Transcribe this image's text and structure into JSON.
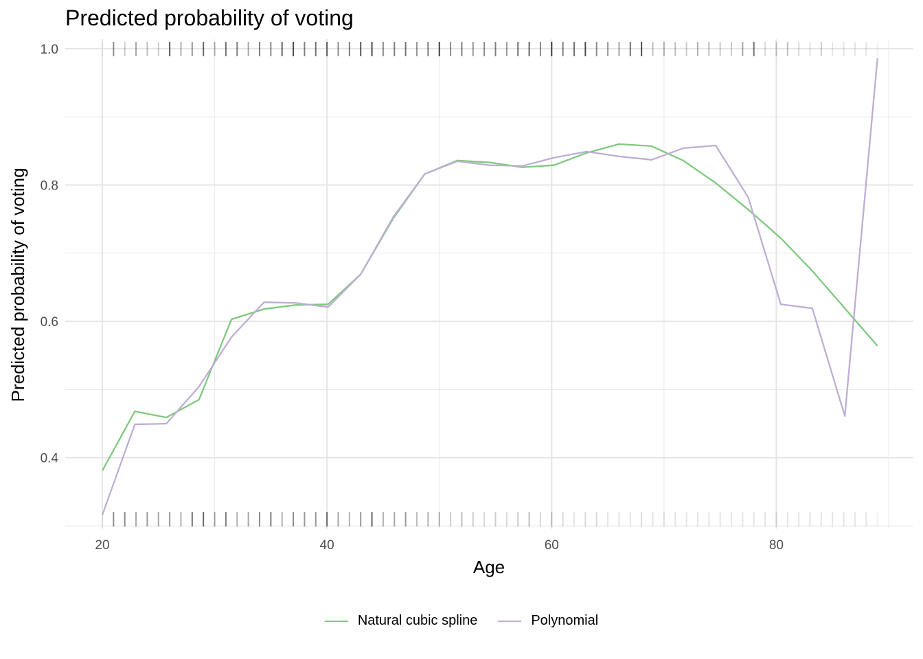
{
  "chart_data": {
    "type": "line",
    "title": "Predicted probability of voting",
    "xlabel": "Age",
    "ylabel": "Predicted probability of voting",
    "xlim": [
      16.7,
      92.2
    ],
    "ylim": [
      0.296,
      1.014
    ],
    "x_ticks": [
      20,
      40,
      60,
      80
    ],
    "y_ticks": [
      0.4,
      0.6,
      0.8,
      1.0
    ],
    "x_tick_labels": [
      "20",
      "40",
      "60",
      "80"
    ],
    "y_tick_labels": [
      "0.4",
      "0.6",
      "0.8",
      "1.0"
    ],
    "grid": true,
    "legend_position": "bottom",
    "x": [
      20,
      22.9,
      25.7,
      28.6,
      31.5,
      34.4,
      37.2,
      40.1,
      43,
      45.9,
      48.7,
      51.6,
      54.5,
      57.4,
      60.2,
      63.1,
      66,
      68.9,
      71.7,
      74.6,
      77.5,
      80.4,
      83.2,
      86.1,
      89
    ],
    "series": [
      {
        "name": "Natural cubic spline",
        "color": "#7fc97f",
        "values": [
          0.381,
          0.468,
          0.459,
          0.485,
          0.603,
          0.618,
          0.624,
          0.625,
          0.669,
          0.751,
          0.816,
          0.836,
          0.833,
          0.826,
          0.829,
          0.847,
          0.86,
          0.857,
          0.836,
          0.803,
          0.764,
          0.722,
          0.674,
          0.619,
          0.564
        ]
      },
      {
        "name": "Polynomial",
        "color": "#beaed4",
        "values": [
          0.316,
          0.449,
          0.45,
          0.504,
          0.577,
          0.628,
          0.627,
          0.621,
          0.669,
          0.753,
          0.816,
          0.835,
          0.829,
          0.828,
          0.84,
          0.849,
          0.842,
          0.837,
          0.854,
          0.858,
          0.782,
          0.625,
          0.619,
          0.461,
          0.986
        ]
      }
    ],
    "rug_ages": [
      20,
      21,
      22,
      23,
      24,
      25,
      26,
      27,
      28,
      29,
      30,
      31,
      32,
      33,
      34,
      35,
      36,
      37,
      38,
      39,
      40,
      41,
      42,
      43,
      44,
      45,
      46,
      47,
      48,
      49,
      50,
      51,
      52,
      53,
      54,
      55,
      56,
      57,
      58,
      59,
      60,
      61,
      62,
      63,
      64,
      65,
      66,
      67,
      68,
      69,
      70,
      71,
      72,
      73,
      74,
      75,
      76,
      77,
      78,
      79,
      80,
      81,
      82,
      83,
      84,
      85,
      86,
      87,
      88,
      89
    ],
    "rug_top_density": [
      0.05,
      0.45,
      0.2,
      0.35,
      0.25,
      0.2,
      0.65,
      0.3,
      0.4,
      0.6,
      0.3,
      0.55,
      0.5,
      0.35,
      0.5,
      0.45,
      0.6,
      0.7,
      0.5,
      0.55,
      0.6,
      0.45,
      0.5,
      0.65,
      0.7,
      0.45,
      0.5,
      0.55,
      0.4,
      0.5,
      0.75,
      0.45,
      0.5,
      0.4,
      0.45,
      0.5,
      0.4,
      0.55,
      0.6,
      0.45,
      0.75,
      0.5,
      0.55,
      0.7,
      0.45,
      0.4,
      0.35,
      0.55,
      0.7,
      0.25,
      0.3,
      0.25,
      0.2,
      0.3,
      0.25,
      0.2,
      0.2,
      0.35,
      0.55,
      0.15,
      0.2,
      0.25,
      0.15,
      0.1,
      0.2,
      0.1,
      0.1,
      0.1,
      0.1,
      0.05
    ],
    "rug_bottom_density": [
      0.05,
      0.45,
      0.45,
      0.35,
      0.4,
      0.35,
      0.4,
      0.3,
      0.55,
      0.6,
      0.35,
      0.5,
      0.3,
      0.35,
      0.45,
      0.5,
      0.3,
      0.45,
      0.4,
      0.4,
      0.55,
      0.35,
      0.3,
      0.4,
      0.6,
      0.3,
      0.35,
      0.4,
      0.25,
      0.3,
      0.3,
      0.2,
      0.25,
      0.2,
      0.15,
      0.2,
      0.15,
      0.2,
      0.25,
      0.15,
      0.2,
      0.15,
      0.1,
      0.15,
      0.15,
      0.1,
      0.1,
      0.1,
      0.15,
      0.1,
      0.1,
      0.1,
      0.1,
      0.1,
      0.1,
      0.1,
      0.1,
      0.1,
      0.1,
      0.1,
      0.1,
      0.1,
      0.1,
      0.1,
      0.1,
      0.1,
      0.1,
      0.1,
      0.1,
      0.05
    ]
  }
}
